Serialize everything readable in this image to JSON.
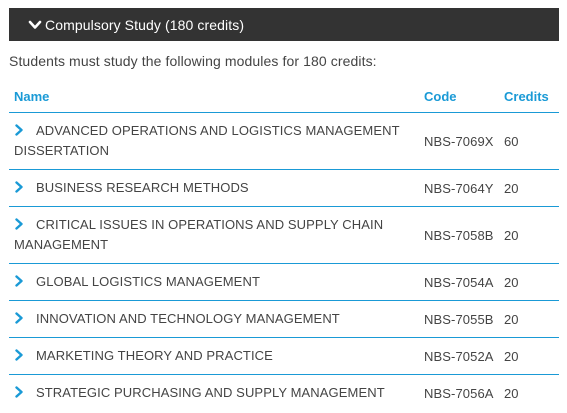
{
  "accordion": {
    "title": "Compulsory Study (180 credits)",
    "expanded": true,
    "icon": "chevron-down-icon"
  },
  "intro_text": "Students must study the following modules for 180 credits:",
  "table": {
    "headers": {
      "name": "Name",
      "code": "Code",
      "credits": "Credits"
    },
    "rows": [
      {
        "name": "ADVANCED OPERATIONS AND LOGISTICS MANAGEMENT DISSERTATION",
        "code": "NBS-7069X",
        "credits": "60"
      },
      {
        "name": "BUSINESS RESEARCH METHODS",
        "code": "NBS-7064Y",
        "credits": "20"
      },
      {
        "name": "CRITICAL ISSUES IN OPERATIONS AND SUPPLY CHAIN MANAGEMENT",
        "code": "NBS-7058B",
        "credits": "20"
      },
      {
        "name": "GLOBAL LOGISTICS MANAGEMENT",
        "code": "NBS-7054A",
        "credits": "20"
      },
      {
        "name": "INNOVATION AND TECHNOLOGY MANAGEMENT",
        "code": "NBS-7055B",
        "credits": "20"
      },
      {
        "name": "MARKETING THEORY AND PRACTICE",
        "code": "NBS-7052A",
        "credits": "20"
      },
      {
        "name": "STRATEGIC PURCHASING AND SUPPLY MANAGEMENT",
        "code": "NBS-7056A",
        "credits": "20"
      }
    ]
  },
  "colors": {
    "header_bg": "#333333",
    "accent": "#1a9ad6",
    "text": "#444444"
  }
}
